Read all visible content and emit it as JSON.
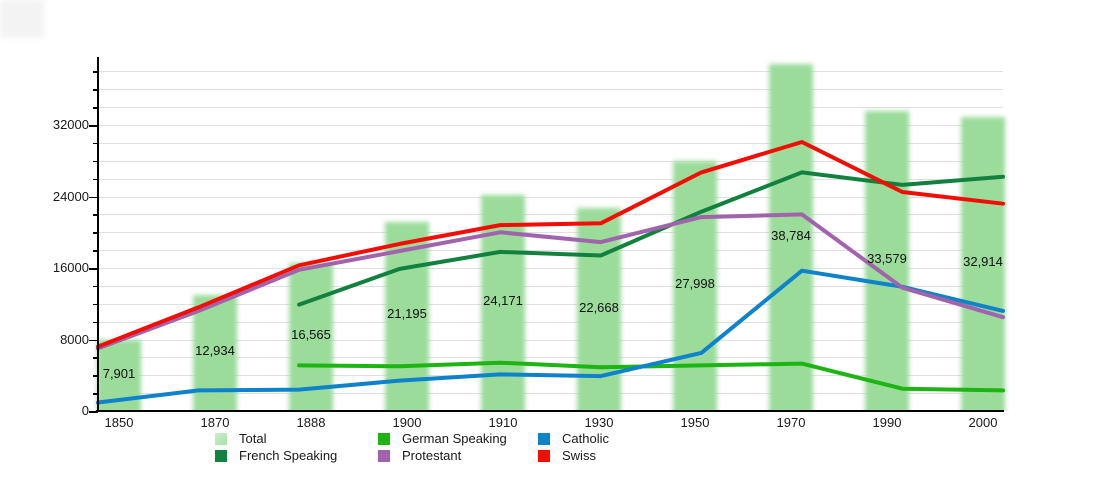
{
  "chart_data": {
    "type": "bar+line",
    "title": "",
    "xlabel": "",
    "ylabel": "",
    "categories": [
      "1850",
      "1870",
      "1888",
      "1900",
      "1910",
      "1930",
      "1950",
      "1970",
      "1990",
      "2000"
    ],
    "bars": {
      "name": "Total",
      "color": "#9BDC9B",
      "values": [
        7901,
        12934,
        16565,
        21195,
        24171,
        22668,
        27998,
        38784,
        33579,
        32914
      ],
      "value_labels": [
        "7,901",
        "12,934",
        "16,565",
        "21,195",
        "24,171",
        "22,668",
        "27,998",
        "38,784",
        "33,579",
        "32,914"
      ]
    },
    "series": [
      {
        "name": "German Speaking",
        "color": "#1EB414",
        "values": [
          null,
          null,
          5100,
          5000,
          5400,
          4900,
          5100,
          5300,
          2500,
          2300
        ]
      },
      {
        "name": "Catholic",
        "color": "#0E82CB",
        "values": [
          950,
          2300,
          2400,
          3400,
          4100,
          3900,
          6500,
          15700,
          13900,
          11200
        ]
      },
      {
        "name": "French Speaking",
        "color": "#12813F",
        "values": [
          null,
          null,
          11900,
          15900,
          17800,
          17400,
          22300,
          26700,
          25300,
          26200
        ]
      },
      {
        "name": "Protestant",
        "color": "#A263AD",
        "values": [
          7000,
          11200,
          15800,
          17900,
          20000,
          18900,
          21700,
          22000,
          13800,
          10500
        ]
      },
      {
        "name": "Swiss",
        "color": "#F20D07",
        "values": [
          7200,
          11600,
          16300,
          18700,
          20800,
          21000,
          26700,
          30100,
          24500,
          23200
        ]
      }
    ],
    "y_axis": {
      "tick_labels": [
        "0",
        "8000",
        "16000",
        "24000",
        "32000"
      ],
      "tick_values": [
        0,
        8000,
        16000,
        24000,
        32000
      ],
      "minor_step": 2000,
      "grid_max": 38000,
      "range": [
        0,
        39600
      ],
      "grid": true
    },
    "legend_position": "bottom",
    "legend_items": [
      {
        "label": "Total",
        "color": "#A6E2A6"
      },
      {
        "label": "French Speaking",
        "color": "#12813F"
      },
      {
        "label": "German Speaking",
        "color": "#1EB414"
      },
      {
        "label": "Protestant",
        "color": "#A263AD"
      },
      {
        "label": "Catholic",
        "color": "#0E82CB"
      },
      {
        "label": "Swiss",
        "color": "#F20D07"
      }
    ]
  }
}
